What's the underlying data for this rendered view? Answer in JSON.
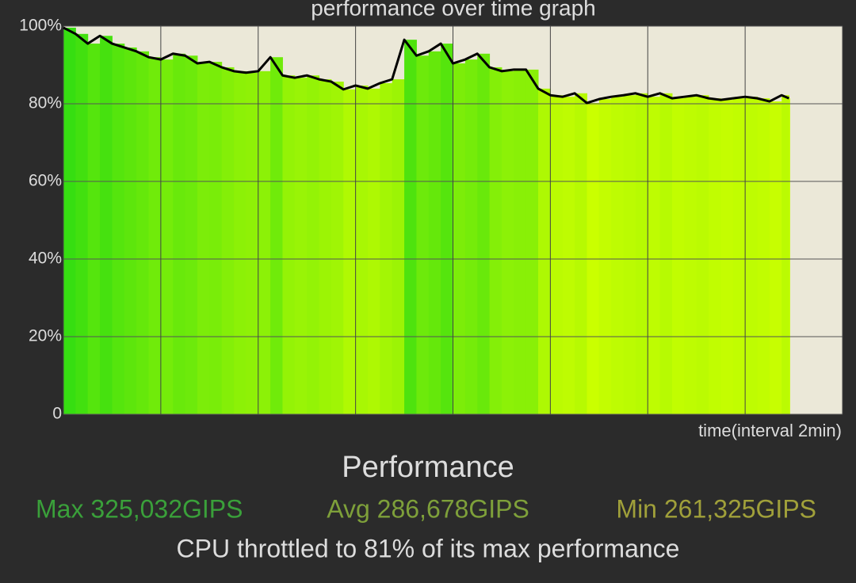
{
  "chart_data": {
    "type": "area",
    "title": "performance over time graph",
    "x_label": "time(interval 2min)",
    "x": [
      0,
      0.25,
      0.5,
      0.75,
      1,
      1.25,
      1.5,
      1.75,
      2,
      2.25,
      2.5,
      2.75,
      3,
      3.25,
      3.5,
      3.75,
      4,
      4.25,
      4.5,
      4.75,
      5,
      5.25,
      5.5,
      5.75,
      6,
      6.25,
      6.5,
      6.75,
      7,
      7.25,
      7.5,
      7.75,
      8,
      8.25,
      8.5,
      8.75,
      9,
      9.25,
      9.5,
      9.75,
      10,
      10.25,
      10.5,
      10.75,
      11,
      11.25,
      11.5,
      11.75,
      12,
      12.25,
      12.5,
      12.75,
      13,
      13.25,
      13.5,
      13.75,
      14,
      14.25,
      14.5,
      14.75,
      14.9
    ],
    "values": [
      99.6,
      98,
      95.5,
      97.5,
      95.5,
      94.5,
      93.5,
      92,
      91.4,
      92.9,
      92.4,
      90.4,
      90.8,
      89.4,
      88.4,
      88,
      88.4,
      92,
      87.3,
      86.7,
      87.3,
      86.3,
      85.7,
      83.7,
      84.7,
      83.9,
      85.3,
      86.3,
      96.5,
      92.4,
      93.5,
      95.5,
      90.4,
      91.4,
      92.9,
      89.4,
      88.4,
      88.8,
      88.8,
      83.9,
      82.2,
      81.8,
      82.7,
      80.2,
      81.2,
      81.8,
      82.2,
      82.7,
      81.8,
      82.7,
      81.4,
      81.8,
      82.2,
      81.4,
      81,
      81.4,
      81.8,
      81.4,
      80.6,
      82.2,
      81.4
    ],
    "color": "#000000",
    "fill_colors": [
      "#33dd11",
      "#ccff00"
    ],
    "xlim": [
      0,
      16
    ],
    "xticks": [
      0,
      2,
      4,
      6,
      8,
      10,
      12,
      14,
      16
    ],
    "ylim": [
      0,
      100
    ],
    "yticks": [
      0,
      {
        "value": 20,
        "label": "20%"
      },
      {
        "value": 40,
        "label": "40%"
      },
      {
        "value": 60,
        "label": "60%"
      },
      {
        "value": 80,
        "label": "80%"
      },
      {
        "value": 100,
        "label": "100%"
      }
    ],
    "grid": true
  },
  "summary": {
    "heading": "Performance",
    "max": "Max 325,032GIPS",
    "avg": "Avg 286,678GIPS",
    "min": "Min 261,325GIPS",
    "note": "CPU throttled to 81% of its max performance"
  }
}
